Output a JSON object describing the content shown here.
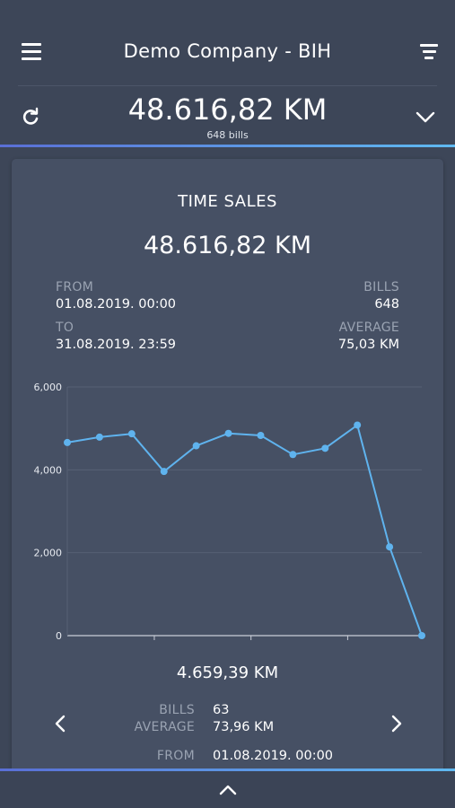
{
  "header": {
    "title": "Demo Company - BIH",
    "menu_icon": "hamburger-menu-icon",
    "filter_icon": "filter-icon"
  },
  "summary": {
    "total": "48.616,82 KM",
    "bills": "648 bills",
    "refresh_icon": "refresh-icon",
    "expand_icon": "chevron-down-icon"
  },
  "card": {
    "title": "TIME SALES",
    "amount": "48.616,82 KM",
    "from_label": "FROM",
    "from_value": "01.08.2019. 00:00",
    "to_label": "TO",
    "to_value": "31.08.2019. 23:59",
    "bills_label": "BILLS",
    "bills_value": "648",
    "average_label": "AVERAGE",
    "average_value": "75,03 KM"
  },
  "detail": {
    "amount": "4.659,39 KM",
    "bills_label": "BILLS",
    "bills_value": "63",
    "average_label": "AVERAGE",
    "average_value": "73,96 KM",
    "from_label": "FROM",
    "from_value": "01.08.2019. 00:00",
    "prev_icon": "chevron-left-icon",
    "next_icon": "chevron-right-icon"
  },
  "footer": {
    "expand_icon": "chevron-up-icon"
  },
  "colors": {
    "background": "#3d4658",
    "card": "#465064",
    "accent_start": "#5a6fd6",
    "accent_end": "#5fb9f0",
    "line": "#5fb3ee",
    "muted_text": "#9aa3b2"
  },
  "chart_data": {
    "type": "line",
    "x": [
      1,
      2,
      3,
      4,
      5,
      6,
      7,
      8,
      9,
      10,
      11,
      12
    ],
    "values": [
      4659.39,
      4790,
      4870,
      3960,
      4580,
      4880,
      4830,
      4370,
      4520,
      5080,
      2140,
      0
    ],
    "y_ticks": [
      "0",
      "2,000",
      "4,000",
      "6,000"
    ],
    "ylim": [
      0,
      6000
    ],
    "grid": true,
    "title": "",
    "xlabel": "",
    "ylabel": ""
  }
}
